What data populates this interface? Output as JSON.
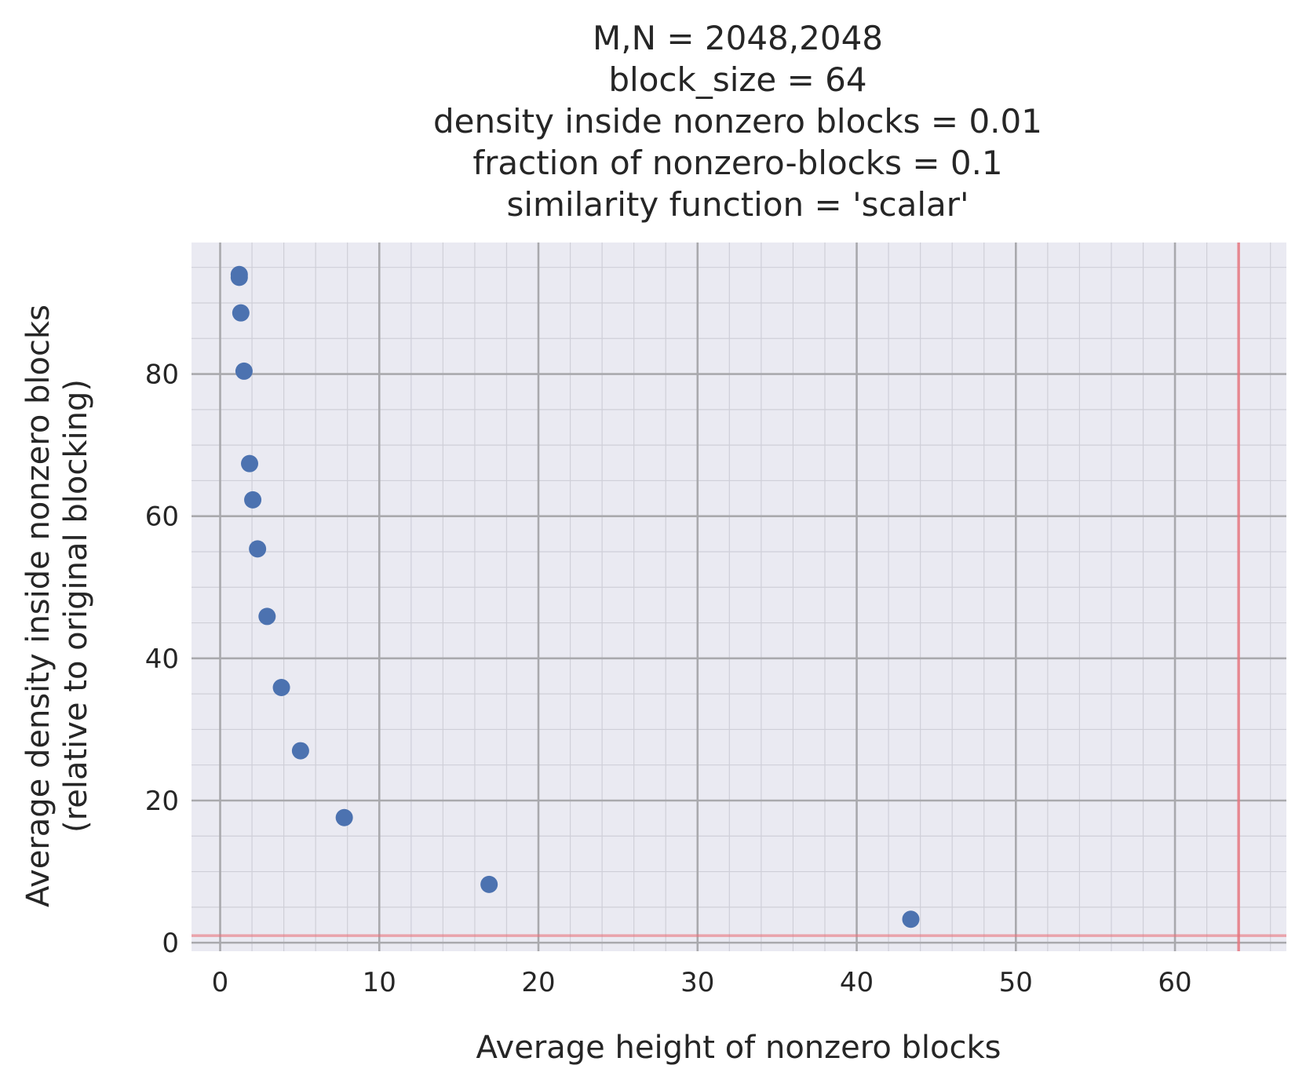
{
  "chart_data": {
    "type": "scatter",
    "title_lines": [
      "M,N = 2048,2048",
      "block_size = 64",
      "density inside nonzero blocks = 0.01",
      "fraction of nonzero-blocks = 0.1",
      "similarity function = 'scalar'"
    ],
    "xlabel": "Average height of nonzero blocks",
    "ylabel_lines": [
      "Average density inside nonzero blocks",
      "(relative to original blocking)"
    ],
    "xlim": [
      -1.8,
      67.0
    ],
    "ylim": [
      -1.2,
      98.5
    ],
    "x_ticks": [
      0,
      10,
      20,
      30,
      40,
      50,
      60
    ],
    "y_ticks": [
      0,
      20,
      40,
      60,
      80
    ],
    "x_minor_step": 2,
    "y_minor_step": 5,
    "grid": true,
    "colors": {
      "plot_bg": "#eaeaf2",
      "points": "#4c72b0",
      "reference_lines": "#e8737c",
      "major_grid": "#a9a9ad",
      "minor_grid": "#cfcfd8"
    },
    "reference_lines": {
      "vertical_x": 64,
      "horizontal_y": 1
    },
    "points": [
      {
        "x": 1.2,
        "y": 94.0
      },
      {
        "x": 1.2,
        "y": 93.6
      },
      {
        "x": 1.3,
        "y": 88.6
      },
      {
        "x": 1.5,
        "y": 80.4
      },
      {
        "x": 1.85,
        "y": 67.4
      },
      {
        "x": 2.05,
        "y": 62.3
      },
      {
        "x": 2.35,
        "y": 55.4
      },
      {
        "x": 2.95,
        "y": 45.9
      },
      {
        "x": 3.85,
        "y": 35.9
      },
      {
        "x": 5.05,
        "y": 27.0
      },
      {
        "x": 7.8,
        "y": 17.6
      },
      {
        "x": 16.9,
        "y": 8.2
      },
      {
        "x": 43.4,
        "y": 3.3
      }
    ]
  }
}
